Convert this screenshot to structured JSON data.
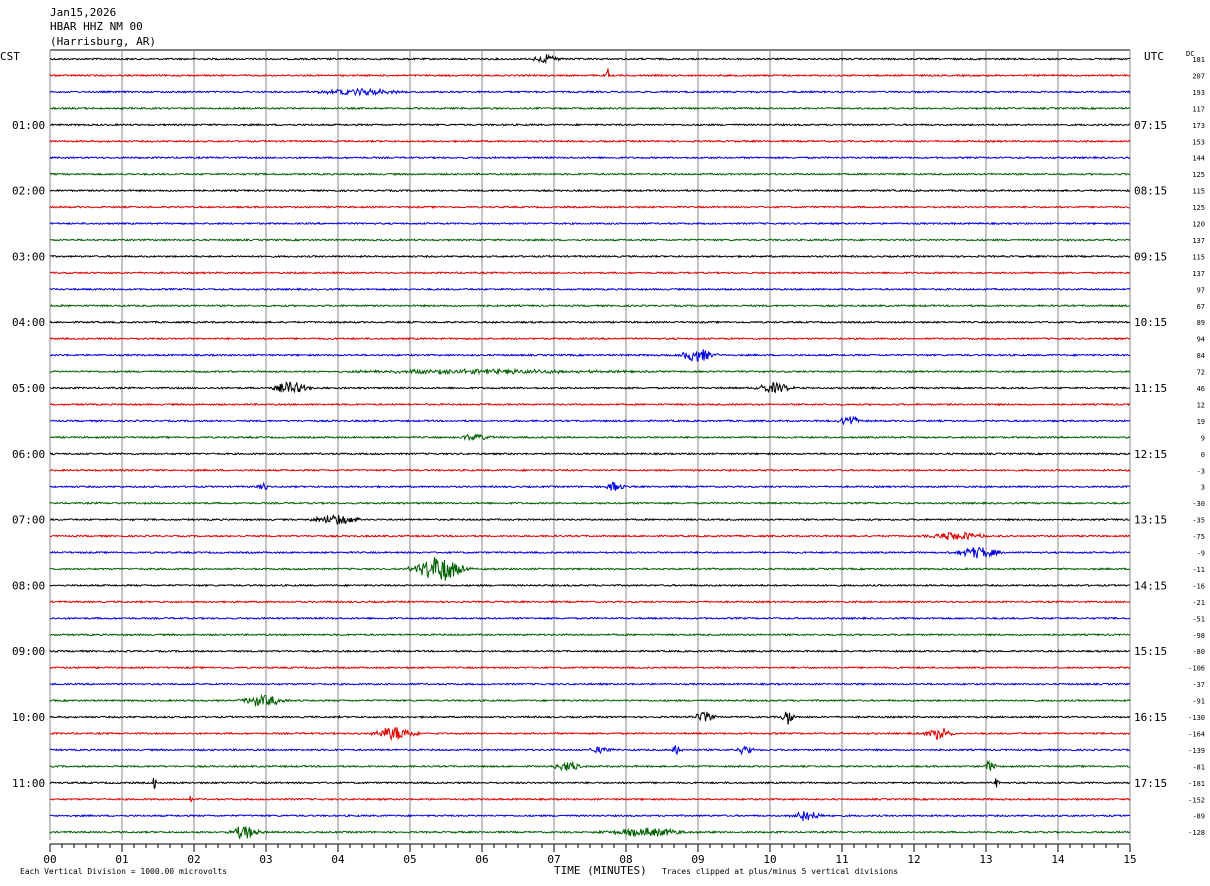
{
  "header": {
    "date": "Jan15,2026",
    "station": "HBAR HHZ NM 00",
    "location": "(Harrisburg, AR)",
    "left_tz": "CST",
    "right_tz": "UTC",
    "dc_label": "DC"
  },
  "footer": {
    "scale_note": "Each Vertical Division = 1000.00 microvolts",
    "xlabel": "TIME (MINUTES)",
    "clip_note": "Traces clipped at plus/minus 5 vertical divisions"
  },
  "colors": {
    "trace": [
      "#000000",
      "#e00000",
      "#0000e0",
      "#006000"
    ],
    "grid": "#888888"
  },
  "chart_data": {
    "type": "line",
    "xlabel": "TIME (MINUTES)",
    "xlim": [
      0,
      15
    ],
    "x_ticks": [
      "00",
      "01",
      "02",
      "03",
      "04",
      "05",
      "06",
      "07",
      "08",
      "09",
      "10",
      "11",
      "12",
      "13",
      "14",
      "15"
    ],
    "left_hour_labels": [
      "01:00",
      "02:00",
      "03:00",
      "04:00",
      "05:00",
      "06:00",
      "07:00",
      "08:00",
      "09:00",
      "10:00",
      "11:00"
    ],
    "right_hour_labels": [
      "07:15",
      "08:15",
      "09:15",
      "10:15",
      "11:15",
      "12:15",
      "13:15",
      "14:15",
      "15:15",
      "16:15",
      "17:15"
    ],
    "trace_count": 48,
    "dc_offsets": [
      "181",
      "207",
      "193",
      "117",
      "173",
      "153",
      "144",
      "125",
      "115",
      "125",
      "120",
      "137",
      "115",
      "137",
      "97",
      "67",
      "89",
      "94",
      "84",
      "72",
      "46",
      "12",
      "19",
      "9",
      "0",
      "-3",
      "3",
      "-30",
      "-35",
      "-75",
      "-9",
      "-11",
      "-16",
      "-21",
      "-51",
      "-98",
      "-80",
      "-106",
      "-37",
      "-91",
      "-130",
      "-164",
      "-139",
      "-81",
      "-181",
      "-152",
      "-89",
      "-128"
    ],
    "events": [
      {
        "trace": 0,
        "minute": 6.9,
        "amp": 4,
        "width": 0.2
      },
      {
        "trace": 1,
        "minute": 7.75,
        "amp": 8,
        "width": 0.02
      },
      {
        "trace": 2,
        "minute": 4.3,
        "amp": 3,
        "width": 0.6
      },
      {
        "trace": 18,
        "minute": 9.0,
        "amp": 7,
        "width": 0.25
      },
      {
        "trace": 19,
        "minute": 6.0,
        "amp": 2,
        "width": 2.0
      },
      {
        "trace": 20,
        "minute": 3.35,
        "amp": 6,
        "width": 0.25
      },
      {
        "trace": 20,
        "minute": 10.05,
        "amp": 5,
        "width": 0.25
      },
      {
        "trace": 22,
        "minute": 11.1,
        "amp": 6,
        "width": 0.15
      },
      {
        "trace": 23,
        "minute": 5.9,
        "amp": 3,
        "width": 0.25
      },
      {
        "trace": 26,
        "minute": 2.95,
        "amp": 4,
        "width": 0.08
      },
      {
        "trace": 26,
        "minute": 7.85,
        "amp": 5,
        "width": 0.12
      },
      {
        "trace": 28,
        "minute": 4.0,
        "amp": 5,
        "width": 0.35
      },
      {
        "trace": 29,
        "minute": 12.6,
        "amp": 4,
        "width": 0.4
      },
      {
        "trace": 30,
        "minute": 12.9,
        "amp": 6,
        "width": 0.3
      },
      {
        "trace": 31,
        "minute": 5.4,
        "amp": 13,
        "width": 0.35
      },
      {
        "trace": 39,
        "minute": 2.95,
        "amp": 6,
        "width": 0.3
      },
      {
        "trace": 40,
        "minute": 9.1,
        "amp": 6,
        "width": 0.15
      },
      {
        "trace": 40,
        "minute": 10.25,
        "amp": 8,
        "width": 0.08
      },
      {
        "trace": 41,
        "minute": 4.8,
        "amp": 7,
        "width": 0.3
      },
      {
        "trace": 41,
        "minute": 12.35,
        "amp": 6,
        "width": 0.2
      },
      {
        "trace": 42,
        "minute": 7.65,
        "amp": 4,
        "width": 0.15
      },
      {
        "trace": 42,
        "minute": 8.7,
        "amp": 5,
        "width": 0.08
      },
      {
        "trace": 42,
        "minute": 9.65,
        "amp": 5,
        "width": 0.12
      },
      {
        "trace": 43,
        "minute": 7.2,
        "amp": 5,
        "width": 0.2
      },
      {
        "trace": 43,
        "minute": 13.05,
        "amp": 5,
        "width": 0.1
      },
      {
        "trace": 44,
        "minute": 1.45,
        "amp": 10,
        "width": 0.02
      },
      {
        "trace": 44,
        "minute": 13.15,
        "amp": 6,
        "width": 0.03
      },
      {
        "trace": 45,
        "minute": 1.95,
        "amp": 8,
        "width": 0.02
      },
      {
        "trace": 46,
        "minute": 10.5,
        "amp": 6,
        "width": 0.2
      },
      {
        "trace": 47,
        "minute": 2.7,
        "amp": 7,
        "width": 0.2
      },
      {
        "trace": 47,
        "minute": 8.3,
        "amp": 4,
        "width": 0.6
      }
    ]
  }
}
